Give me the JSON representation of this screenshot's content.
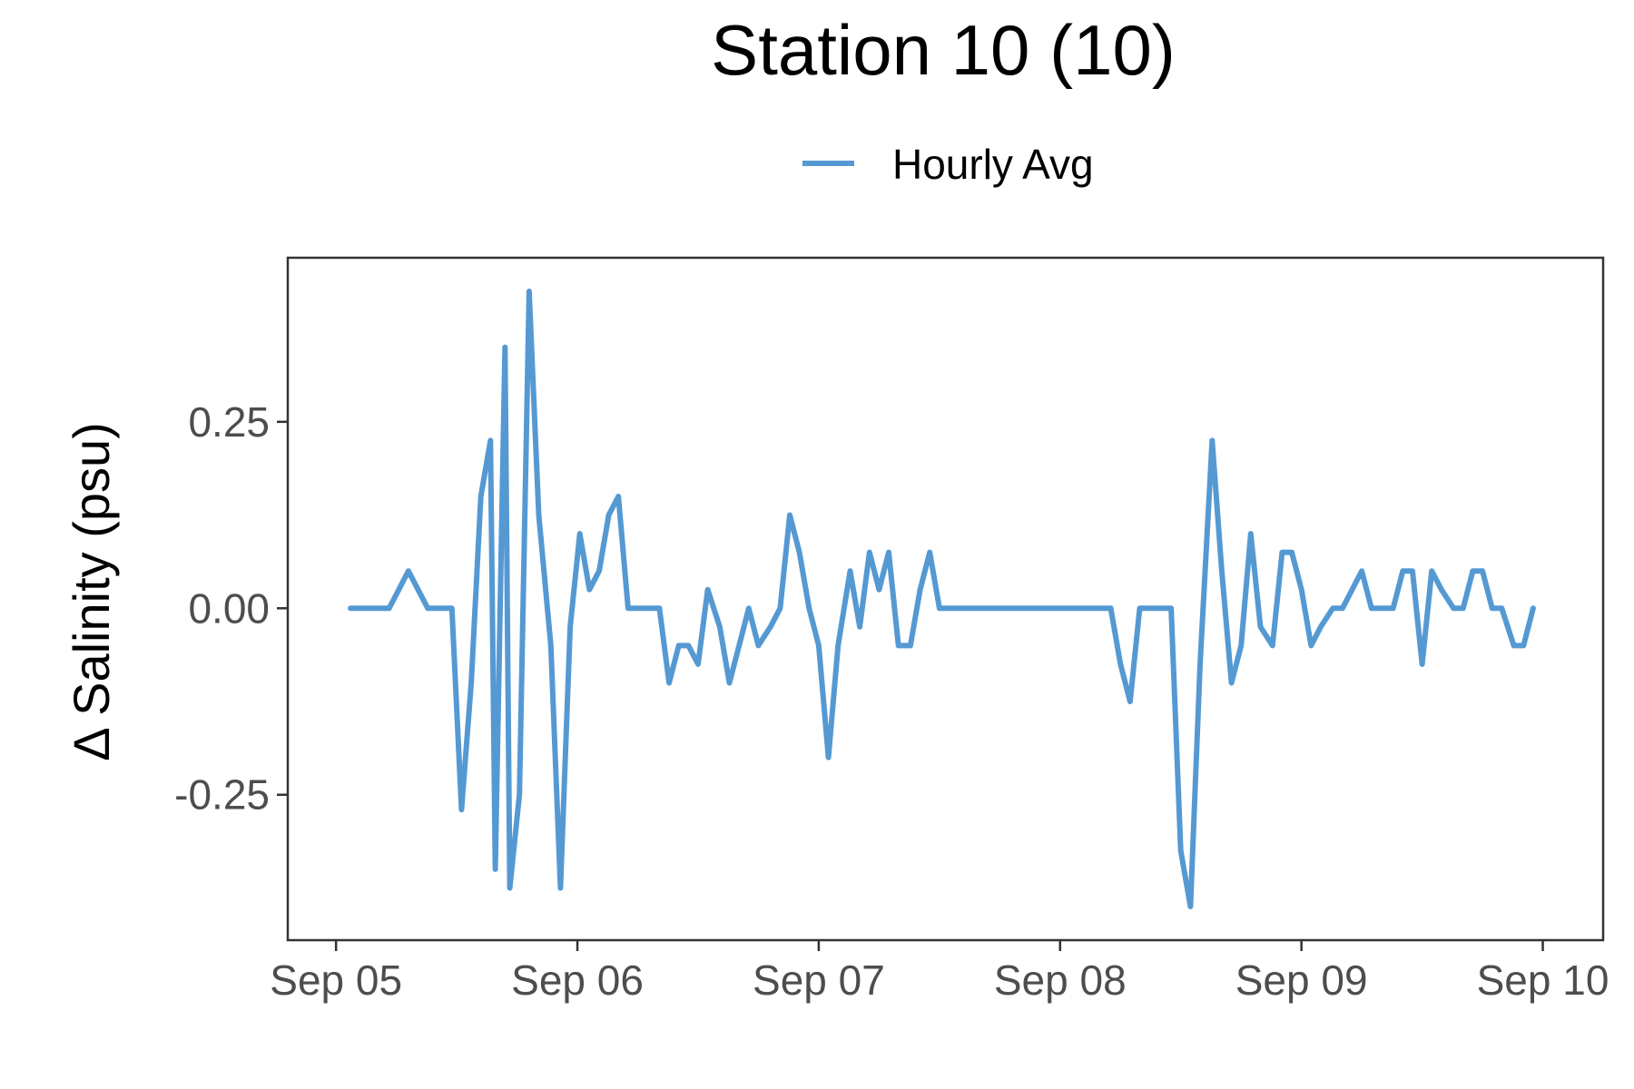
{
  "chart_data": {
    "type": "line",
    "title": "Station 10 (10)",
    "xlabel": "",
    "ylabel": "Δ Salinity (psu)",
    "x_tick_labels": [
      "Sep 05",
      "Sep 06",
      "Sep 07",
      "Sep 08",
      "Sep 09",
      "Sep 10"
    ],
    "y_tick_labels": [
      "-0.25",
      "0.00",
      "0.25"
    ],
    "y_ticks": [
      -0.25,
      0,
      0.25
    ],
    "ylim": [
      -0.445,
      0.47
    ],
    "xlim_days": [
      -0.2,
      5.25
    ],
    "x_unit": "days from Sep 05 00:00",
    "grid": false,
    "legend_position": "top-center",
    "series": [
      {
        "name": "Hourly Avg",
        "color": "#5599d3",
        "x": [
          0.06,
          0.14,
          0.22,
          0.3,
          0.38,
          0.44,
          0.48,
          0.52,
          0.56,
          0.6,
          0.64,
          0.66,
          0.7,
          0.72,
          0.76,
          0.8,
          0.84,
          0.89,
          0.93,
          0.97,
          1.01,
          1.05,
          1.09,
          1.13,
          1.17,
          1.21,
          1.25,
          1.3,
          1.34,
          1.38,
          1.42,
          1.46,
          1.5,
          1.54,
          1.59,
          1.63,
          1.67,
          1.71,
          1.75,
          1.8,
          1.84,
          1.88,
          1.92,
          1.96,
          2.0,
          2.04,
          2.08,
          2.13,
          2.17,
          2.21,
          2.25,
          2.29,
          2.33,
          2.38,
          2.42,
          2.46,
          2.5,
          2.54,
          2.58,
          2.63,
          2.71,
          2.79,
          2.88,
          2.96,
          3.04,
          3.13,
          3.21,
          3.25,
          3.29,
          3.33,
          3.38,
          3.42,
          3.46,
          3.5,
          3.54,
          3.58,
          3.63,
          3.67,
          3.71,
          3.75,
          3.79,
          3.83,
          3.88,
          3.92,
          3.96,
          4.0,
          4.04,
          4.08,
          4.13,
          4.17,
          4.21,
          4.25,
          4.29,
          4.33,
          4.38,
          4.42,
          4.46,
          4.5,
          4.54,
          4.58,
          4.63,
          4.67,
          4.71,
          4.75,
          4.79,
          4.83,
          4.88,
          4.92,
          4.96
        ],
        "y": [
          0,
          0,
          0,
          0.05,
          0,
          0,
          0,
          -0.27,
          -0.1,
          0.15,
          0.225,
          -0.35,
          0.35,
          -0.375,
          -0.25,
          0.425,
          0.125,
          -0.05,
          -0.375,
          -0.025,
          0.1,
          0.025,
          0.05,
          0.125,
          0.15,
          0,
          0,
          0,
          0,
          -0.1,
          -0.05,
          -0.05,
          -0.075,
          0.025,
          -0.025,
          -0.1,
          -0.05,
          0,
          -0.05,
          -0.025,
          0,
          0.125,
          0.075,
          0,
          -0.05,
          -0.2,
          -0.05,
          0.05,
          -0.025,
          0.075,
          0.025,
          0.075,
          -0.05,
          -0.05,
          0.025,
          0.075,
          0,
          0,
          0,
          0,
          0,
          0,
          0,
          0,
          0,
          0,
          0,
          -0.075,
          -0.125,
          0,
          0,
          0,
          0,
          -0.325,
          -0.4,
          -0.075,
          0.225,
          0.05,
          -0.1,
          -0.05,
          0.1,
          -0.025,
          -0.05,
          0.075,
          0.075,
          0.025,
          -0.05,
          -0.025,
          0,
          0,
          0.025,
          0.05,
          0,
          0,
          0,
          0.05,
          0.05,
          -0.075,
          0.05,
          0.025,
          0,
          0,
          0.05,
          0.05,
          0,
          0,
          -0.05,
          -0.05,
          0
        ]
      }
    ]
  }
}
